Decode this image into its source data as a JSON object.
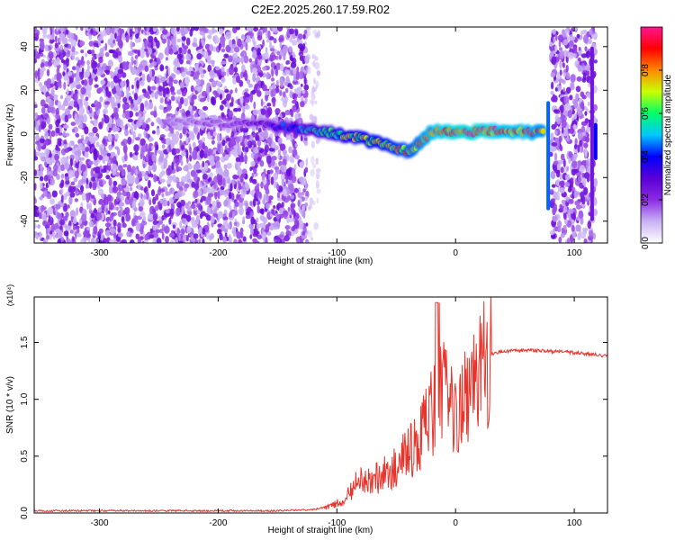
{
  "figure_title": "C2E2.2025.260.17.59.R02",
  "chart_data": [
    {
      "type": "heatmap",
      "title": "C2E2.2025.260.17.59.R02",
      "xlabel": "Height of straight line (km)",
      "ylabel": "Frequency (Hz)",
      "xlim": [
        -355,
        128
      ],
      "ylim": [
        -50,
        49
      ],
      "xticks": [
        -300,
        -200,
        -100,
        0,
        100
      ],
      "yticks": [
        -40,
        -20,
        0,
        20,
        40
      ],
      "xtick_labels": [
        "-300",
        "-200",
        "-100",
        "0",
        "100"
      ],
      "ytick_labels": [
        "-40",
        "-20",
        "0",
        "20",
        "40"
      ],
      "colorbar": {
        "label": "Normalized spectral amplitude",
        "range": [
          0,
          1
        ],
        "ticks": [
          0.0,
          0.2,
          0.4,
          0.6,
          0.8
        ],
        "tick_labels": [
          "0.0",
          "0.2",
          "0.4",
          "0.6",
          "0.8"
        ],
        "colors": [
          "#ffffff",
          "#c9b1f5",
          "#8a2be2",
          "#5a00d6",
          "#0000ff",
          "#00c8ff",
          "#00ff66",
          "#c8ff00",
          "#ff8800",
          "#ff0000",
          "#ff1493"
        ]
      },
      "noise_regions": [
        {
          "x_range": [
            -355,
            -125
          ],
          "y_range": [
            -50,
            49
          ],
          "amplitude": 0.12
        },
        {
          "x_range": [
            -125,
            -115
          ],
          "y_range": [
            -50,
            49
          ],
          "amplitude": 0.03
        },
        {
          "x_range": [
            80,
            118
          ],
          "y_range": [
            -50,
            49
          ],
          "amplitude": 0.12
        }
      ],
      "signal_band": {
        "x": [
          -240,
          -200,
          -160,
          -140,
          -120,
          -100,
          -80,
          -60,
          -40,
          -30,
          -20,
          0,
          20,
          40,
          60,
          75
        ],
        "freq": [
          6,
          5,
          4,
          3,
          2,
          0,
          -2,
          -5,
          -8,
          -4,
          1,
          1,
          1,
          1,
          1,
          1
        ],
        "amplitude": [
          0.18,
          0.2,
          0.3,
          0.45,
          0.55,
          0.65,
          0.7,
          0.75,
          0.8,
          0.85,
          0.9,
          0.95,
          0.95,
          0.9,
          0.9,
          0.85
        ]
      },
      "vertical_features": [
        {
          "x": 78,
          "y_range": [
            -35,
            15
          ],
          "amplitude": 0.45
        },
        {
          "x": 118,
          "y_range": [
            -12,
            5
          ],
          "amplitude": 0.4
        },
        {
          "x": 115,
          "y_range": [
            -40,
            40
          ],
          "amplitude": 0.25
        }
      ]
    },
    {
      "type": "line",
      "xlabel": "Height of straight line (km)",
      "ylabel": "SNR (10 * v/v)",
      "exponent_label": "(x10⁴)",
      "xlim": [
        -355,
        128
      ],
      "ylim": [
        0,
        1.9
      ],
      "xticks": [
        -300,
        -200,
        -100,
        0,
        100
      ],
      "yticks": [
        0.0,
        0.5,
        1.0,
        1.5
      ],
      "xtick_labels": [
        "-300",
        "-200",
        "-100",
        "0",
        "100"
      ],
      "ytick_labels": [
        "0.0",
        "0.5",
        "1.0",
        "1.5"
      ],
      "line_color": "#e8352c",
      "series": [
        {
          "name": "SNR",
          "x": [
            -355,
            -300,
            -200,
            -150,
            -120,
            -105,
            -95,
            -90,
            -85,
            -80,
            -75,
            -70,
            -65,
            -60,
            -55,
            -50,
            -45,
            -40,
            -35,
            -30,
            -25,
            -20,
            -16,
            -12,
            -8,
            -4,
            0,
            4,
            8,
            12,
            16,
            20,
            25,
            30,
            40,
            50,
            60,
            70,
            80,
            90,
            100,
            110,
            120,
            128
          ],
          "y": [
            0.02,
            0.02,
            0.02,
            0.02,
            0.03,
            0.06,
            0.12,
            0.18,
            0.25,
            0.3,
            0.28,
            0.3,
            0.33,
            0.36,
            0.38,
            0.42,
            0.5,
            0.55,
            0.6,
            0.75,
            0.8,
            0.9,
            1.0,
            1.05,
            1.1,
            0.95,
            1.0,
            1.05,
            1.1,
            1.2,
            1.25,
            1.3,
            1.35,
            1.4,
            1.42,
            1.43,
            1.43,
            1.43,
            1.42,
            1.42,
            1.41,
            1.4,
            1.39,
            1.38
          ]
        }
      ]
    }
  ]
}
